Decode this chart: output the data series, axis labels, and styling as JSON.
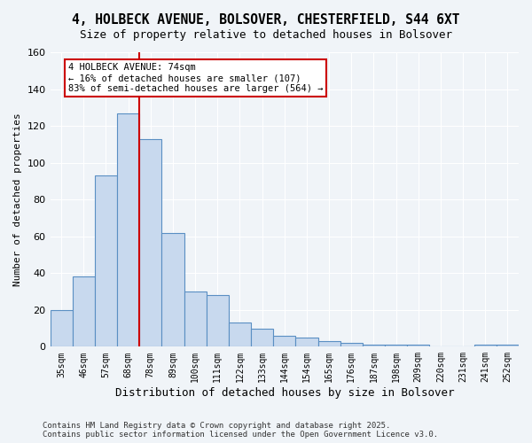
{
  "title_line1": "4, HOLBECK AVENUE, BOLSOVER, CHESTERFIELD, S44 6XT",
  "title_line2": "Size of property relative to detached houses in Bolsover",
  "xlabel": "Distribution of detached houses by size in Bolsover",
  "ylabel": "Number of detached properties",
  "bins": [
    "35sqm",
    "46sqm",
    "57sqm",
    "68sqm",
    "78sqm",
    "89sqm",
    "100sqm",
    "111sqm",
    "122sqm",
    "133sqm",
    "144sqm",
    "154sqm",
    "165sqm",
    "176sqm",
    "187sqm",
    "198sqm",
    "209sqm",
    "220sqm",
    "231sqm",
    "241sqm",
    "252sqm"
  ],
  "values": [
    20,
    38,
    93,
    127,
    113,
    62,
    30,
    28,
    13,
    10,
    6,
    5,
    3,
    2,
    1,
    1,
    1,
    0,
    0,
    1,
    1
  ],
  "bar_color": "#c8d9ee",
  "bar_edge_color": "#5a8fc3",
  "property_line_x": 3.5,
  "annotation_text_line1": "4 HOLBECK AVENUE: 74sqm",
  "annotation_text_line2": "← 16% of detached houses are smaller (107)",
  "annotation_text_line3": "83% of semi-detached houses are larger (564) →",
  "annotation_box_color": "#ffffff",
  "annotation_box_edge_color": "#cc0000",
  "property_line_color": "#cc0000",
  "footer_line1": "Contains HM Land Registry data © Crown copyright and database right 2025.",
  "footer_line2": "Contains public sector information licensed under the Open Government Licence v3.0.",
  "ylim": [
    0,
    160
  ],
  "background_color": "#f0f4f8"
}
